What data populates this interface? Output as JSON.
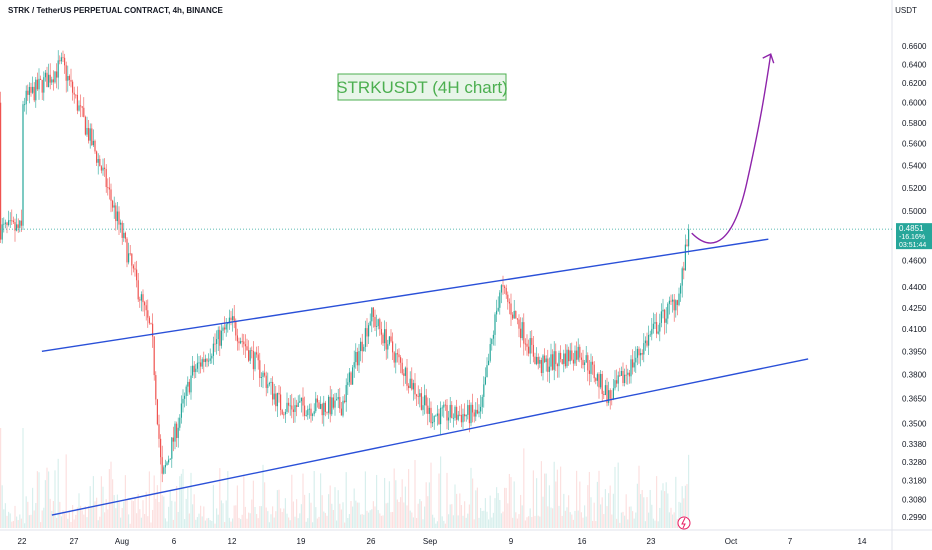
{
  "header": {
    "symbol_line": "STRK / TetherUS PERPETUAL CONTRACT, 4h, BINANCE",
    "currency": "USDT"
  },
  "annotation": {
    "title": "STRKUSDT (4H chart)"
  },
  "price_badge": {
    "price": "0.4851",
    "change": "-16.16%",
    "countdown": "03:51:44"
  },
  "colors": {
    "up": "#26a69a",
    "down": "#ef5350",
    "channel": "#2a50d8",
    "arrow": "#8e24aa",
    "badge_bg": "#26a69a",
    "title_text": "#4caf50",
    "title_bg": "#e8f5e9"
  },
  "chart_data": {
    "type": "candlestick",
    "y_axis": {
      "ticks": [
        0.66,
        0.64,
        0.62,
        0.6,
        0.58,
        0.56,
        0.54,
        0.52,
        0.5,
        0.46,
        0.44,
        0.425,
        0.41,
        0.395,
        0.38,
        0.365,
        0.35,
        0.338,
        0.328,
        0.318,
        0.308,
        0.299
      ],
      "tick_labels": [
        "0.6600",
        "0.6400",
        "0.6200",
        "0.6000",
        "0.5800",
        "0.5600",
        "0.5400",
        "0.5200",
        "0.5000",
        "0.4600",
        "0.4400",
        "0.4250",
        "0.4100",
        "0.3950",
        "0.3800",
        "0.3650",
        "0.3500",
        "0.3380",
        "0.3280",
        "0.3180",
        "0.3080",
        "0.2990"
      ],
      "scale": "log"
    },
    "x_axis": {
      "tick_labels": [
        "22",
        "27",
        "Aug",
        "6",
        "12",
        "19",
        "26",
        "Sep",
        "9",
        "16",
        "23",
        "Oct",
        "7",
        "14"
      ]
    },
    "last_price": 0.4851,
    "key_points": [
      {
        "date": "Jul 22",
        "price": 0.6
      },
      {
        "date": "Jul 26",
        "price": 0.64
      },
      {
        "date": "Jul 30",
        "price": 0.535
      },
      {
        "date": "Aug 1",
        "price": 0.48
      },
      {
        "date": "Aug 4",
        "price": 0.405
      },
      {
        "date": "Aug 5",
        "price": 0.318
      },
      {
        "date": "Aug 8",
        "price": 0.38
      },
      {
        "date": "Aug 12",
        "price": 0.415
      },
      {
        "date": "Aug 17",
        "price": 0.36
      },
      {
        "date": "Aug 23",
        "price": 0.36
      },
      {
        "date": "Aug 26",
        "price": 0.42
      },
      {
        "date": "Sep 1",
        "price": 0.355
      },
      {
        "date": "Sep 6",
        "price": 0.355
      },
      {
        "date": "Sep 8",
        "price": 0.44
      },
      {
        "date": "Sep 12",
        "price": 0.385
      },
      {
        "date": "Sep 16",
        "price": 0.395
      },
      {
        "date": "Sep 19",
        "price": 0.365
      },
      {
        "date": "Sep 23",
        "price": 0.405
      },
      {
        "date": "Sep 26",
        "price": 0.435
      },
      {
        "date": "Sep 27",
        "price": 0.4851
      }
    ],
    "channel_upper": {
      "start": {
        "date": "Jul 24",
        "price": 0.395
      },
      "end": {
        "date": "Oct 5",
        "price": 0.477
      }
    },
    "channel_lower": {
      "start": {
        "date": "Jul 25",
        "price": 0.3
      },
      "end": {
        "date": "Oct 9",
        "price": 0.39
      }
    },
    "projection": {
      "from_price": 0.4851,
      "to_price": 0.651
    },
    "volume_shown": true,
    "grid": false
  }
}
